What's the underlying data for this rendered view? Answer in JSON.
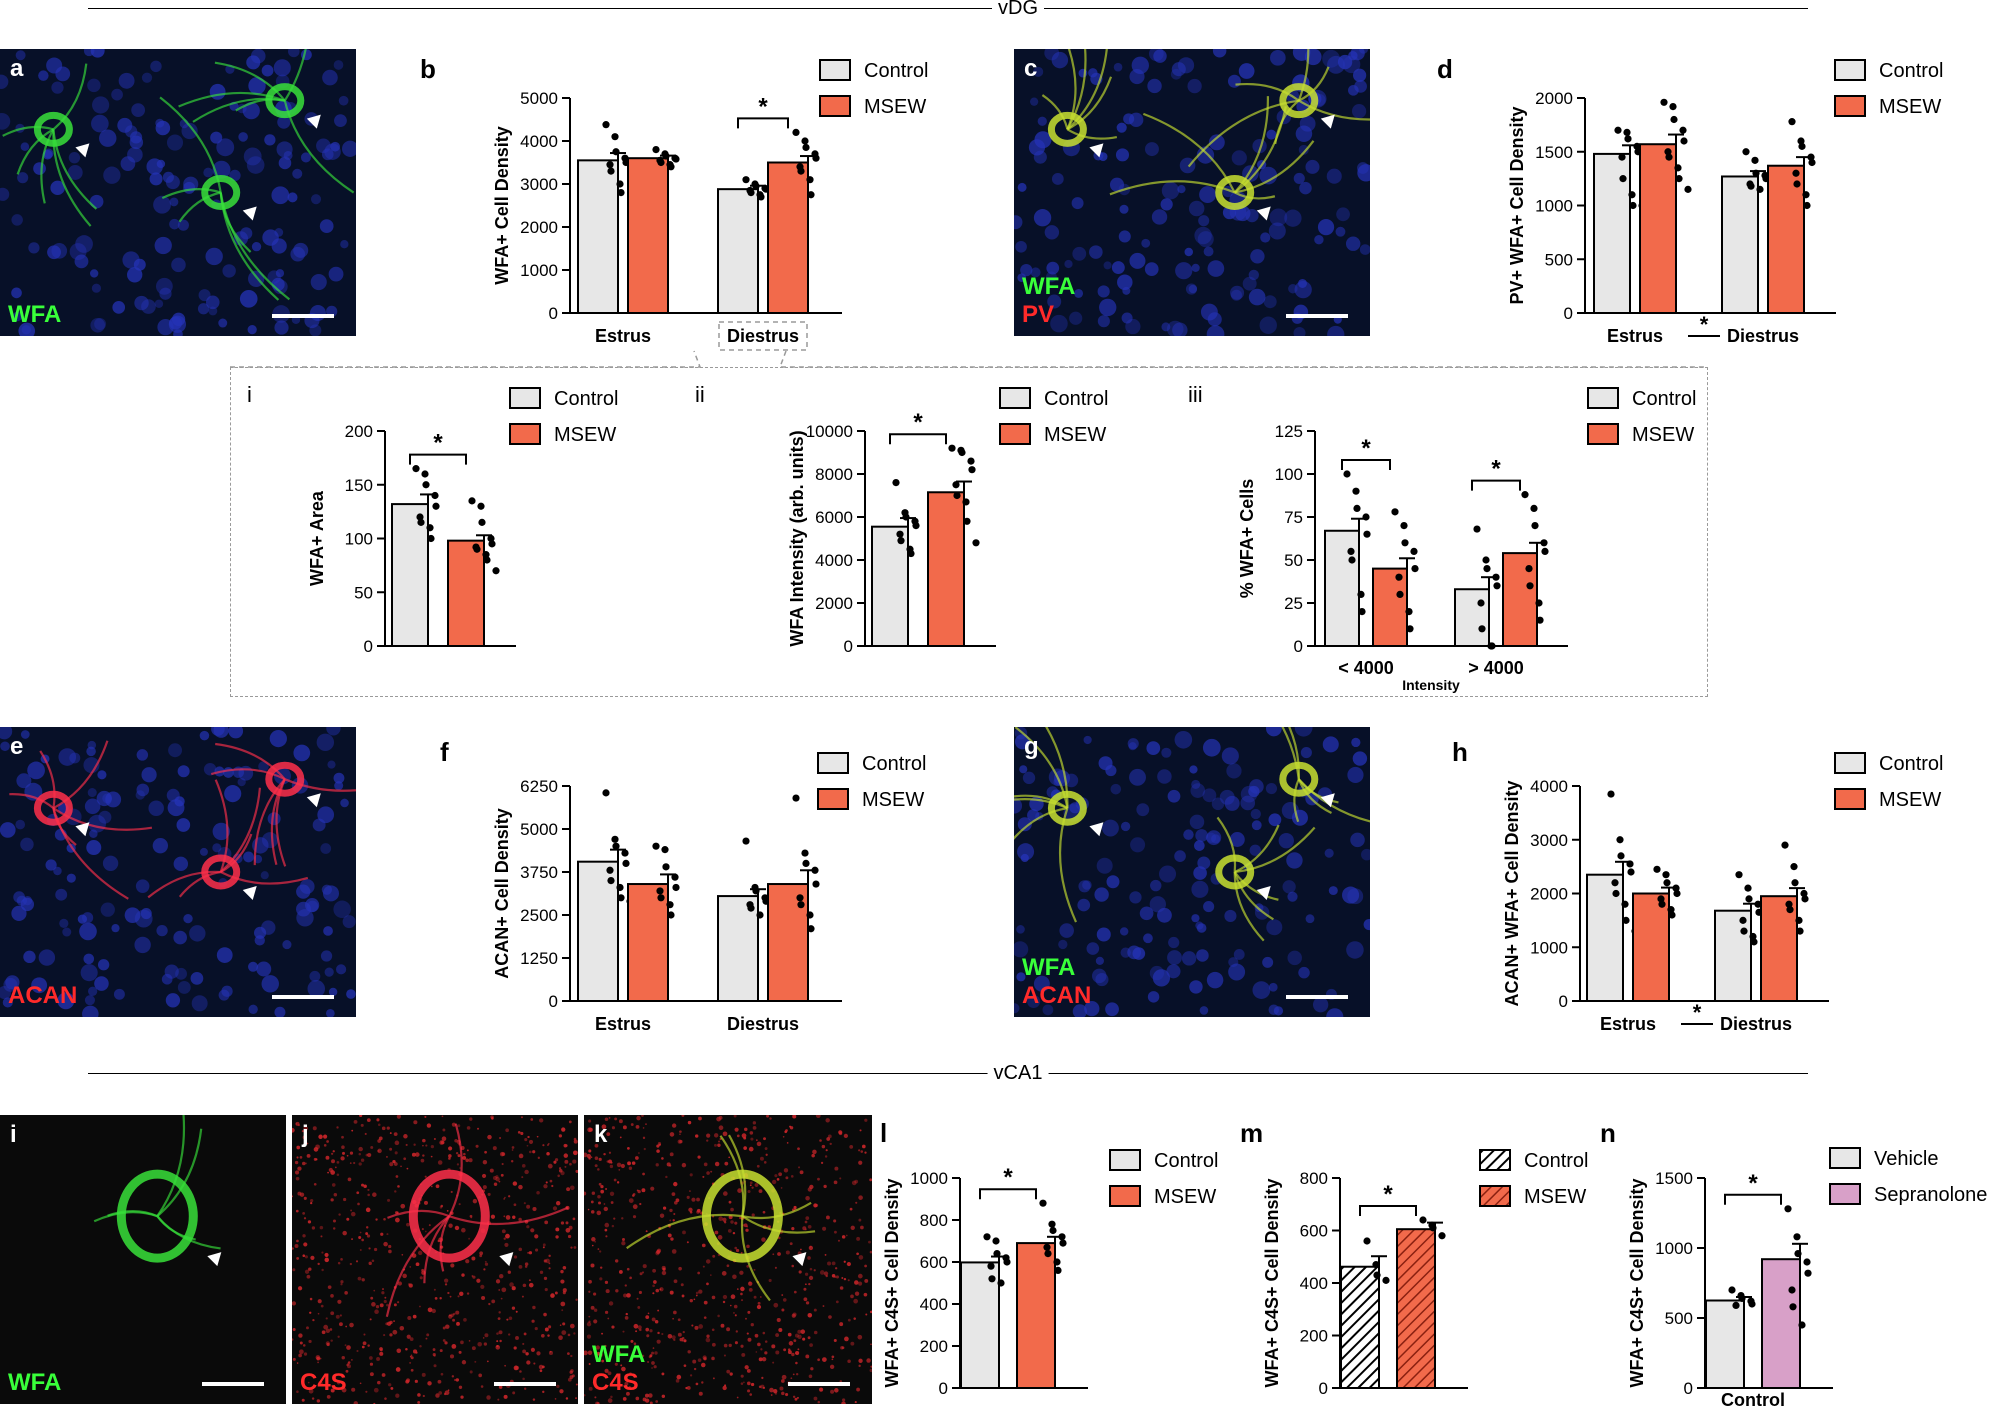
{
  "sections": {
    "top": "vDG",
    "bottom": "vCA1"
  },
  "colors": {
    "control": "#e7e7e7",
    "msew": "#f26a4b",
    "vehicle": "#e7e7e7",
    "sepranolone": "#d8a0c8",
    "wfa": "#39ff3a",
    "acan": "#ff2a2a",
    "pv": "#ff2a2a",
    "c4s": "#ff2a2a",
    "nucleus": "#2030c0"
  },
  "micrographs": [
    {
      "id": "a",
      "letter": "a",
      "stains": [
        {
          "text": "WFA",
          "color": "#39ff3a"
        }
      ]
    },
    {
      "id": "c",
      "letter": "c",
      "stains": [
        {
          "text": "WFA",
          "color": "#39ff3a"
        },
        {
          "text": "PV",
          "color": "#ff2a2a"
        }
      ]
    },
    {
      "id": "e",
      "letter": "e",
      "stains": [
        {
          "text": "ACAN",
          "color": "#ff2a2a"
        }
      ]
    },
    {
      "id": "g",
      "letter": "g",
      "stains": [
        {
          "text": "WFA",
          "color": "#39ff3a"
        },
        {
          "text": "ACAN",
          "color": "#ff2a2a"
        }
      ]
    },
    {
      "id": "i2",
      "letter": "i",
      "stains": [
        {
          "text": "WFA",
          "color": "#39ff3a"
        }
      ]
    },
    {
      "id": "j",
      "letter": "j",
      "stains": [
        {
          "text": "C4S",
          "color": "#ff2a2a"
        }
      ]
    },
    {
      "id": "k",
      "letter": "k",
      "stains": [
        {
          "text": "WFA",
          "color": "#39ff3a"
        },
        {
          "text": "C4S",
          "color": "#ff2a2a"
        }
      ]
    }
  ],
  "chart_data": [
    {
      "id": "b",
      "panel": "b",
      "type": "bar",
      "ylabel": "WFA+ Cell Density",
      "ylim": [
        0,
        5000
      ],
      "yticks": [
        0,
        1000,
        2000,
        3000,
        4000,
        5000
      ],
      "categories": [
        "Estrus",
        "Diestrus"
      ],
      "legend": [
        "Control",
        "MSEW"
      ],
      "series": [
        {
          "name": "Control",
          "values": [
            3550,
            2880
          ],
          "sem": [
            170,
            80
          ],
          "points": [
            [
              4380,
              4100,
              3750,
              3600,
              3500,
              3450,
              3300,
              3000,
              2800
            ],
            [
              3100,
              3000,
              2950,
              2900,
              2880,
              2850,
              2800,
              2750,
              2700
            ]
          ]
        },
        {
          "name": "MSEW",
          "values": [
            3600,
            3500
          ],
          "sem": [
            60,
            150
          ],
          "points": [
            [
              3800,
              3700,
              3650,
              3600,
              3580,
              3550,
              3500,
              3450,
              3400
            ],
            [
              4200,
              4000,
              3850,
              3700,
              3600,
              3400,
              3300,
              3100,
              2750
            ]
          ]
        }
      ],
      "sig": [
        {
          "category": 1,
          "label": "*"
        }
      ],
      "dashed_category": 1
    },
    {
      "id": "d",
      "panel": "d",
      "type": "bar",
      "ylabel": "PV+ WFA+ Cell Density",
      "ylim": [
        0,
        2000
      ],
      "yticks": [
        0,
        500,
        1000,
        1500,
        2000
      ],
      "categories": [
        "Estrus",
        "Diestrus"
      ],
      "legend": [
        "Control",
        "MSEW"
      ],
      "series": [
        {
          "name": "Control",
          "values": [
            1480,
            1270
          ],
          "sem": [
            80,
            50
          ],
          "points": [
            [
              1700,
              1680,
              1620,
              1550,
              1500,
              1450,
              1250,
              1100,
              1000,
              1000
            ],
            [
              1500,
              1420,
              1300,
              1280,
              1250,
              1200,
              1180,
              1150
            ]
          ]
        },
        {
          "name": "MSEW",
          "values": [
            1570,
            1370
          ],
          "sem": [
            90,
            80
          ],
          "points": [
            [
              1960,
              1920,
              1800,
              1700,
              1600,
              1500,
              1450,
              1350,
              1250,
              1150
            ],
            [
              1780,
              1600,
              1550,
              1450,
              1400,
              1300,
              1200,
              1100,
              1000
            ]
          ]
        }
      ],
      "main_effect": {
        "label": "*"
      }
    },
    {
      "id": "i",
      "panel": "i",
      "type": "bar",
      "ylabel": "WFA+ Area",
      "ylim": [
        0,
        200
      ],
      "yticks": [
        0,
        50,
        100,
        150,
        200
      ],
      "categories": [
        ""
      ],
      "legend": [
        "Control",
        "MSEW"
      ],
      "series": [
        {
          "name": "Control",
          "values": [
            132
          ],
          "sem": [
            9
          ],
          "points": [
            [
              165,
              160,
              150,
              140,
              130,
              120,
              115,
              110,
              100
            ]
          ]
        },
        {
          "name": "MSEW",
          "values": [
            98
          ],
          "sem": [
            5
          ],
          "points": [
            [
              135,
              130,
              115,
              100,
              95,
              92,
              90,
              85,
              80,
              70
            ]
          ]
        }
      ],
      "sig": [
        {
          "category": 0,
          "label": "*"
        }
      ]
    },
    {
      "id": "ii",
      "panel": "ii",
      "type": "bar",
      "ylabel": "WFA Intensity (arb. units)",
      "ylim": [
        0,
        10000
      ],
      "yticks": [
        0,
        2000,
        4000,
        6000,
        8000,
        10000
      ],
      "categories": [
        ""
      ],
      "legend": [
        "Control",
        "MSEW"
      ],
      "series": [
        {
          "name": "Control",
          "values": [
            5550
          ],
          "sem": [
            400
          ],
          "points": [
            [
              7600,
              6200,
              6000,
              5800,
              5600,
              5200,
              4900,
              4500,
              4300
            ]
          ]
        },
        {
          "name": "MSEW",
          "values": [
            7150
          ],
          "sem": [
            500
          ],
          "points": [
            [
              9200,
              9100,
              9000,
              8600,
              8200,
              7500,
              7000,
              6700,
              5800,
              4800
            ]
          ]
        }
      ],
      "sig": [
        {
          "category": 0,
          "label": "*"
        }
      ]
    },
    {
      "id": "iii",
      "panel": "iii",
      "type": "bar",
      "ylabel": "% WFA+ Cells",
      "ylim": [
        0,
        125
      ],
      "yticks": [
        0,
        25,
        50,
        75,
        100,
        125
      ],
      "categories": [
        "< 4000",
        "> 4000"
      ],
      "xlabel": "Intensity",
      "legend": [
        "Control",
        "MSEW"
      ],
      "series": [
        {
          "name": "Control",
          "values": [
            67,
            33
          ],
          "sem": [
            7,
            7
          ],
          "points": [
            [
              100,
              90,
              80,
              75,
              65,
              55,
              50,
              30,
              20
            ],
            [
              68,
              50,
              45,
              40,
              35,
              25,
              10,
              0,
              0
            ]
          ]
        },
        {
          "name": "MSEW",
          "values": [
            45,
            54
          ],
          "sem": [
            6,
            6
          ],
          "points": [
            [
              78,
              70,
              60,
              55,
              45,
              40,
              30,
              20,
              10
            ],
            [
              88,
              80,
              70,
              60,
              55,
              45,
              35,
              25,
              15
            ]
          ]
        }
      ],
      "sig": [
        {
          "category": 0,
          "label": "*"
        },
        {
          "category": 1,
          "label": "*"
        }
      ]
    },
    {
      "id": "f",
      "panel": "f",
      "type": "bar",
      "ylabel": "ACAN+ Cell Density",
      "ylim": [
        0,
        6250
      ],
      "yticks": [
        0,
        1250,
        2500,
        3750,
        5000,
        6250
      ],
      "categories": [
        "Estrus",
        "Diestrus"
      ],
      "legend": [
        "Control",
        "MSEW"
      ],
      "series": [
        {
          "name": "Control",
          "values": [
            4050,
            3050
          ],
          "sem": [
            350,
            200
          ],
          "points": [
            [
              6050,
              4700,
              4500,
              4300,
              4000,
              3800,
              3500,
              3300,
              3000,
              2900
            ],
            [
              4650,
              3300,
              3200,
              3000,
              2900,
              2800,
              2700,
              2500
            ]
          ]
        },
        {
          "name": "MSEW",
          "values": [
            3400,
            3400
          ],
          "sem": [
            280,
            400
          ],
          "points": [
            [
              4500,
              4400,
              3900,
              3600,
              3300,
              3200,
              3000,
              2800,
              2500
            ],
            [
              5900,
              4300,
              4000,
              3800,
              3400,
              3000,
              2800,
              2500,
              2100
            ]
          ]
        }
      ]
    },
    {
      "id": "h",
      "panel": "h",
      "type": "bar",
      "ylabel": "ACAN+ WFA+ Cell Density",
      "ylim": [
        0,
        4000
      ],
      "yticks": [
        0,
        1000,
        2000,
        3000,
        4000
      ],
      "categories": [
        "Estrus",
        "Diestrus"
      ],
      "legend": [
        "Control",
        "MSEW"
      ],
      "series": [
        {
          "name": "Control",
          "values": [
            2350,
            1680
          ],
          "sem": [
            240,
            130
          ],
          "points": [
            [
              3850,
              3000,
              2700,
              2550,
              2400,
              2200,
              2000,
              1800,
              1500,
              1300
            ],
            [
              2350,
              2100,
              1900,
              1800,
              1650,
              1500,
              1300,
              1200,
              1100
            ]
          ]
        },
        {
          "name": "MSEW",
          "values": [
            2000,
            1950
          ],
          "sem": [
            110,
            150
          ],
          "points": [
            [
              2450,
              2350,
              2200,
              2100,
              2000,
              1900,
              1800,
              1700,
              1600
            ],
            [
              2900,
              2500,
              2200,
              2000,
              1900,
              1800,
              1700,
              1500,
              1300
            ]
          ]
        }
      ],
      "main_effect": {
        "label": "*"
      }
    },
    {
      "id": "l",
      "panel": "l",
      "type": "bar",
      "ylabel": "WFA+ C4S+ Cell Density",
      "ylim": [
        0,
        1000
      ],
      "yticks": [
        0,
        200,
        400,
        600,
        800,
        1000
      ],
      "categories": [
        ""
      ],
      "legend": [
        "Control",
        "MSEW"
      ],
      "series": [
        {
          "name": "Control",
          "values": [
            598
          ],
          "sem": [
            28
          ],
          "points": [
            [
              720,
              700,
              640,
              620,
              600,
              580,
              520,
              500
            ]
          ]
        },
        {
          "name": "MSEW",
          "values": [
            690
          ],
          "sem": [
            30
          ],
          "points": [
            [
              880,
              780,
              750,
              720,
              690,
              670,
              640,
              600,
              560
            ]
          ]
        }
      ],
      "sig": [
        {
          "category": 0,
          "label": "*"
        }
      ]
    },
    {
      "id": "m",
      "panel": "m",
      "type": "bar",
      "ylabel": "WFA+ C4S+ Cell Density",
      "ylim": [
        0,
        800
      ],
      "yticks": [
        0,
        200,
        400,
        600,
        800
      ],
      "categories": [
        ""
      ],
      "legend": [
        "Control",
        "MSEW"
      ],
      "hatched": true,
      "series": [
        {
          "name": "Control",
          "values": [
            462
          ],
          "sem": [
            40
          ],
          "points": [
            [
              560,
              470,
              430,
              410
            ]
          ]
        },
        {
          "name": "MSEW",
          "values": [
            605
          ],
          "sem": [
            25
          ],
          "points": [
            [
              640,
              620,
              610,
              580
            ]
          ]
        }
      ],
      "sig": [
        {
          "category": 0,
          "label": "*"
        }
      ]
    },
    {
      "id": "n",
      "panel": "n",
      "type": "bar",
      "ylabel": "WFA+ C4S+ Cell Density",
      "ylim": [
        0,
        1500
      ],
      "yticks": [
        0,
        500,
        1000,
        1500
      ],
      "categories": [
        "Control"
      ],
      "legend": [
        "Vehicle",
        "Sepranolone"
      ],
      "series": [
        {
          "name": "Vehicle",
          "values": [
            625
          ],
          "sem": [
            25
          ],
          "points": [
            [
              700,
              660,
              640,
              620,
              600,
              590
            ]
          ]
        },
        {
          "name": "Sepranolone",
          "values": [
            920
          ],
          "sem": [
            110
          ],
          "points": [
            [
              1280,
              1080,
              960,
              900,
              820,
              700,
              580,
              450
            ]
          ]
        }
      ],
      "sig": [
        {
          "category": 0,
          "label": "*"
        }
      ]
    }
  ]
}
